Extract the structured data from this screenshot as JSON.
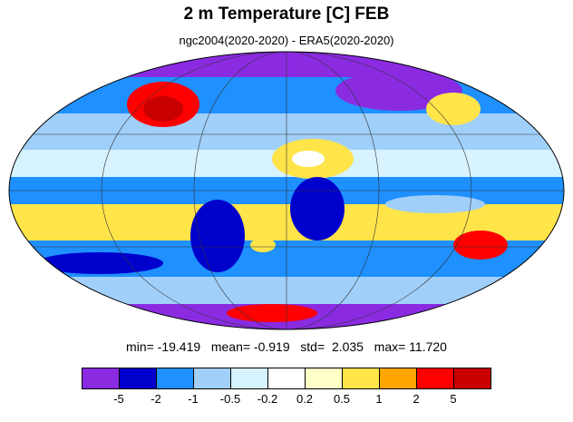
{
  "header": {
    "title": "2 m Temperature [C] FEB",
    "subtitle": "ngc2004(2020-2020) - ERA5(2020-2020)"
  },
  "stats": {
    "min_label": "min=",
    "min_value": "-19.419",
    "mean_label": "mean=",
    "mean_value": "-0.919",
    "std_label": "std=",
    "std_value": "2.035",
    "max_label": "max=",
    "max_value": "11.720"
  },
  "colorbar": {
    "colors": [
      "#8a2be2",
      "#0000cd",
      "#1e90ff",
      "#a0cffa",
      "#d6f3ff",
      "#ffffff",
      "#ffffc8",
      "#ffe44a",
      "#ffa500",
      "#ff0000",
      "#c80000"
    ],
    "labels": [
      "-5",
      "-2",
      "-1",
      "-0.5",
      "-0.2",
      "0.2",
      "0.5",
      "1",
      "2",
      "5"
    ]
  },
  "map": {
    "projection": "mollweide",
    "ocean_pattern_colors": [
      "#1e90ff",
      "#a0cffa",
      "#ffffff",
      "#ffe44a",
      "#0000cd",
      "#8a2be2",
      "#ff0000"
    ]
  }
}
